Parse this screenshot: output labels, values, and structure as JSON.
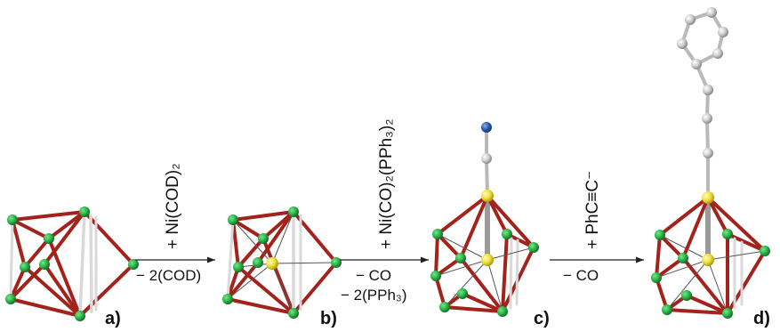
{
  "panels": {
    "a": "a)",
    "b": "b)",
    "c": "c)",
    "d": "d)"
  },
  "steps": [
    {
      "reagent": "+ Ni(COD)₂",
      "byproduct_1": "− 2(COD)",
      "byproduct_2": ""
    },
    {
      "reagent": "+ Ni(CO)₂(PPh₃)₂",
      "byproduct_1": "− CO",
      "byproduct_2": "− 2(PPh₃)"
    },
    {
      "reagent": "+ PhC≡C⁻",
      "byproduct_1": "− CO",
      "byproduct_2": ""
    }
  ],
  "colors": {
    "bond_red": "#a3231c",
    "bond_white": "#d9d9d9",
    "atom_green": "#2db84b",
    "atom_yellow": "#f2e23a",
    "atom_grey": "#c8c8c8",
    "atom_blue": "#2a5fb5",
    "arrow": "#222222"
  }
}
